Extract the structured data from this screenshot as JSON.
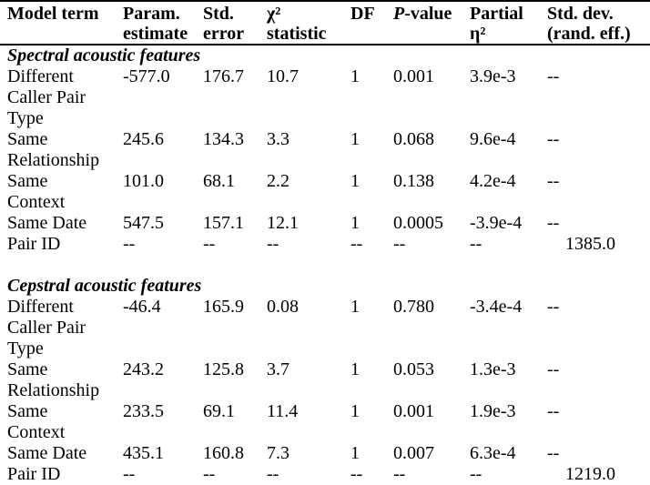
{
  "table": {
    "headers": [
      {
        "label": "Model term"
      },
      {
        "label": "Param.\nestimate"
      },
      {
        "label": "Std.\nerror"
      },
      {
        "label": "χ²\nstatistic"
      },
      {
        "label": "DF"
      },
      {
        "label_italic": "P",
        "label": "-value"
      },
      {
        "label": "Partial\nη²"
      },
      {
        "label": "Std. dev.\n(rand. eff.)"
      }
    ],
    "sections": [
      {
        "title": "Spectral acoustic features",
        "rows": [
          {
            "cells": [
              "Different\nCaller Pair\nType",
              "-577.0",
              "176.7",
              "10.7",
              "1",
              "0.001",
              "3.9e-3",
              "--"
            ]
          },
          {
            "cells": [
              "Same\nRelationship",
              "245.6",
              "134.3",
              "3.3",
              "1",
              "0.068",
              "9.6e-4",
              "--"
            ]
          },
          {
            "cells": [
              "Same\nContext",
              "101.0",
              "68.1",
              "2.2",
              "1",
              "0.138",
              "4.2e-4",
              "--"
            ]
          },
          {
            "cells": [
              "Same Date",
              "547.5",
              "157.1",
              "12.1",
              "1",
              "0.0005",
              "-3.9e-4",
              "--"
            ]
          },
          {
            "cells": [
              "Pair ID",
              "--",
              "--",
              "--",
              "--",
              "--",
              "--",
              "1385.0"
            ]
          }
        ]
      },
      {
        "title": "Cepstral acoustic features",
        "rows": [
          {
            "cells": [
              "Different\nCaller Pair\nType",
              "-46.4",
              "165.9",
              "0.08",
              "1",
              "0.780",
              "-3.4e-4",
              "--"
            ]
          },
          {
            "cells": [
              "Same\nRelationship",
              "243.2",
              "125.8",
              "3.7",
              "1",
              "0.053",
              "1.3e-3",
              "--"
            ]
          },
          {
            "cells": [
              "Same\nContext",
              "233.5",
              "69.1",
              "11.4",
              "1",
              "0.001",
              "1.9e-3",
              "--"
            ]
          },
          {
            "cells": [
              "Same Date",
              "435.1",
              "160.8",
              "7.3",
              "1",
              "0.007",
              "6.3e-4",
              "--"
            ]
          },
          {
            "cells": [
              "Pair ID",
              "--",
              "--",
              "--",
              "--",
              "--",
              "--",
              "1219.0"
            ]
          }
        ]
      }
    ]
  }
}
